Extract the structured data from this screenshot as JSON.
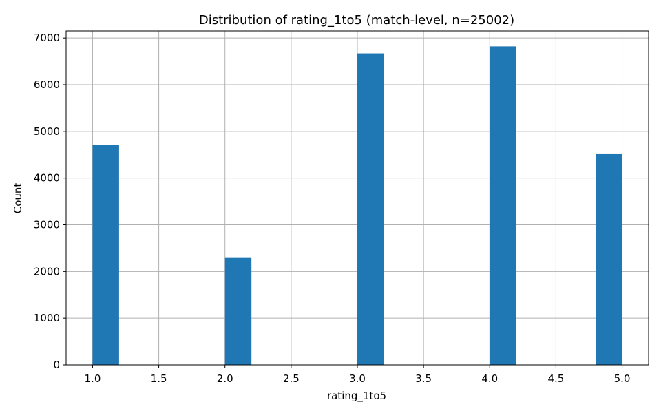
{
  "chart_data": {
    "type": "bar",
    "title": "Distribution of rating_1to5 (match-level, n=25002)",
    "xlabel": "rating_1to5",
    "ylabel": "Count",
    "xlim": [
      0.8,
      5.2
    ],
    "ylim": [
      0,
      7150
    ],
    "xticks": [
      1.0,
      1.5,
      2.0,
      2.5,
      3.0,
      3.5,
      4.0,
      4.5,
      5.0
    ],
    "xtick_labels": [
      "1.0",
      "1.5",
      "2.0",
      "2.5",
      "3.0",
      "3.5",
      "4.0",
      "4.5",
      "5.0"
    ],
    "yticks": [
      0,
      1000,
      2000,
      3000,
      4000,
      5000,
      6000,
      7000
    ],
    "ytick_labels": [
      "0",
      "1000",
      "2000",
      "3000",
      "4000",
      "5000",
      "6000",
      "7000"
    ],
    "grid": true,
    "bin_width": 0.2,
    "bins": [
      {
        "start": 1.0,
        "end": 1.2,
        "value": 4710
      },
      {
        "start": 2.0,
        "end": 2.2,
        "value": 2290
      },
      {
        "start": 3.0,
        "end": 3.2,
        "value": 6670
      },
      {
        "start": 4.0,
        "end": 4.2,
        "value": 6820
      },
      {
        "start": 4.8,
        "end": 5.0,
        "value": 4512
      }
    ],
    "colors": {
      "bar": "#1f77b4",
      "grid": "#b0b0b0",
      "axis": "#000000"
    }
  }
}
